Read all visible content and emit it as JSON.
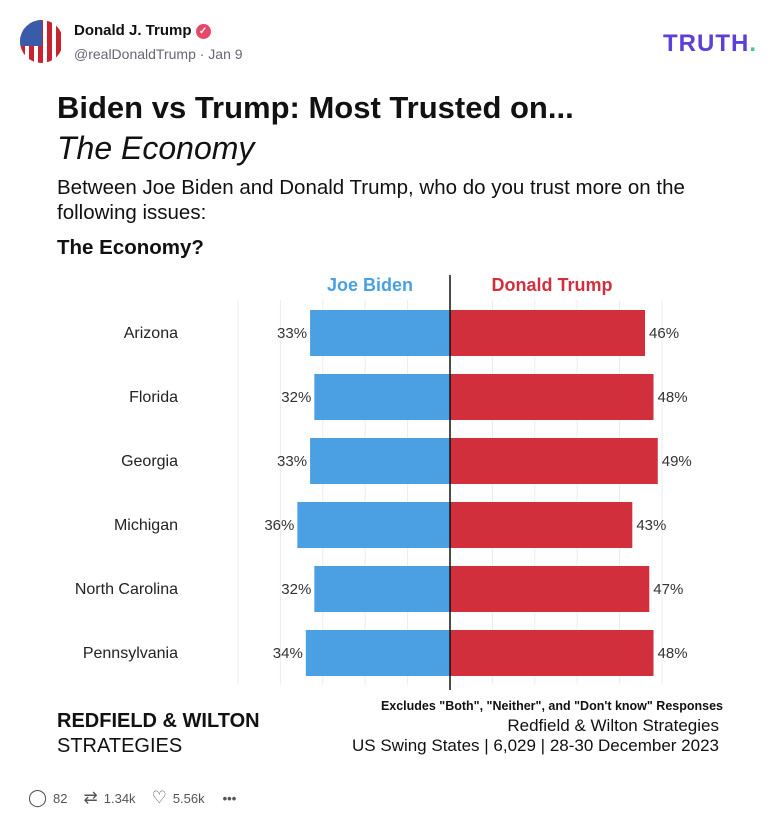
{
  "post": {
    "author": "Donald J. Trump",
    "handle": "@realDonaldTrump · Jan 9",
    "logo": "TRUTH",
    "logo_dot": ".",
    "verified_icon": "check-badge-icon"
  },
  "image": {
    "title": "Biden vs Trump: Most Trusted on...",
    "subtitle": "The Economy",
    "question": "Between Joe Biden and Donald Trump, who do you trust more on the following issues:",
    "topic": "The Economy?",
    "brand_line1": "REDFIELD & WILTON",
    "brand_line2": "STRATEGIES",
    "note": "Excludes \"Both\", \"Neither\", and \"Don't know\" Responses",
    "source": "Redfield & Wilton Strategies",
    "details": "US Swing States | 6,029 | 28-30 December 2023"
  },
  "chart_data": {
    "type": "bar",
    "orientation": "diverging-horizontal",
    "categories": [
      "Arizona",
      "Florida",
      "Georgia",
      "Michigan",
      "North Carolina",
      "Pennsylvania"
    ],
    "series": [
      {
        "name": "Joe Biden",
        "color": "#4aa0e2",
        "values": [
          33,
          32,
          33,
          36,
          32,
          34
        ],
        "labels": [
          "33%",
          "32%",
          "33%",
          "36%",
          "32%",
          "34%"
        ]
      },
      {
        "name": "Donald Trump",
        "color": "#d22f3d",
        "values": [
          46,
          48,
          49,
          43,
          47,
          48
        ],
        "labels": [
          "46%",
          "48%",
          "49%",
          "43%",
          "47%",
          "48%"
        ]
      }
    ],
    "grid": true
  },
  "actions": {
    "replies": "82",
    "reposts": "1.34k",
    "likes": "5.56k",
    "more": "•••"
  }
}
